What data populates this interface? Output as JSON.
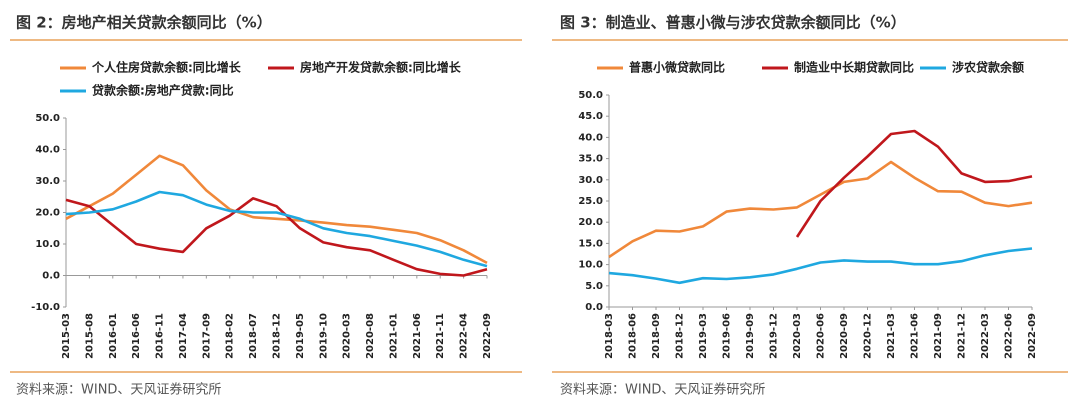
{
  "chart_data": [
    {
      "type": "line",
      "title": "图 2：房地产相关贷款余额同比（%）",
      "source": "资料来源：WIND、天风证券研究所",
      "categories": [
        "2015-03",
        "2015-08",
        "2016-01",
        "2016-06",
        "2016-11",
        "2017-04",
        "2017-09",
        "2018-02",
        "2018-07",
        "2018-12",
        "2019-05",
        "2019-10",
        "2020-03",
        "2020-08",
        "2021-01",
        "2021-06",
        "2021-11",
        "2022-04",
        "2022-09"
      ],
      "series": [
        {
          "name": "个人住房贷款余额:同比增长",
          "color": "#f0883a",
          "values": [
            18,
            22,
            26,
            32,
            38,
            35,
            27,
            21,
            18.5,
            18,
            17.5,
            16.8,
            16,
            15.5,
            14.5,
            13.5,
            11.2,
            8,
            4
          ]
        },
        {
          "name": "房地产开发贷款余额:同比增长",
          "color": "#c0171c",
          "values": [
            24,
            22,
            16,
            10,
            8.5,
            7.5,
            15,
            19,
            24.5,
            22,
            15,
            10.5,
            9,
            8,
            5,
            2,
            0.5,
            0,
            2
          ]
        },
        {
          "name": "贷款余额:房地产贷款:同比",
          "color": "#1fa8e0",
          "values": [
            19.5,
            20,
            21,
            23.5,
            26.5,
            25.5,
            22.5,
            20.5,
            20,
            20,
            18,
            15,
            13.5,
            12.5,
            11,
            9.5,
            7.5,
            5,
            3
          ]
        }
      ],
      "ylim": [
        -10,
        50
      ],
      "yticks": [
        {
          "value": -10,
          "label": "-10.0"
        },
        {
          "value": 0,
          "label": "0.0"
        },
        {
          "value": 10,
          "label": "10.0"
        },
        {
          "value": 20,
          "label": "20.0"
        },
        {
          "value": 30,
          "label": "30.0"
        },
        {
          "value": 40,
          "label": "40.0"
        },
        {
          "value": 50,
          "label": "50.0"
        }
      ],
      "grid": false
    },
    {
      "type": "line",
      "title": "图 3：制造业、普惠小微与涉农贷款余额同比（%）",
      "source": "资料来源：WIND、天风证券研究所",
      "categories": [
        "2018-03",
        "2018-06",
        "2018-09",
        "2018-12",
        "2019-03",
        "2019-06",
        "2019-09",
        "2019-12",
        "2020-03",
        "2020-06",
        "2020-09",
        "2020-12",
        "2021-03",
        "2021-06",
        "2021-09",
        "2021-12",
        "2022-03",
        "2022-06",
        "2022-09"
      ],
      "series": [
        {
          "name": "普惠小微贷款同比",
          "color": "#f0883a",
          "values": [
            11.8,
            15.5,
            18,
            17.8,
            19,
            22.5,
            23.2,
            23,
            23.5,
            26.5,
            29.5,
            30.3,
            34.2,
            30.5,
            27.3,
            27.2,
            24.6,
            23.8,
            24.6
          ]
        },
        {
          "name": "制造业中长期贷款同比",
          "color": "#c0171c",
          "values": [
            null,
            null,
            null,
            null,
            null,
            null,
            null,
            null,
            16.5,
            25,
            30.5,
            35.5,
            40.8,
            41.5,
            37.8,
            31.5,
            29.5,
            29.7,
            30.8
          ]
        },
        {
          "name": "涉农贷款余额",
          "color": "#1fa8e0",
          "values": [
            8,
            7.5,
            6.7,
            5.7,
            6.8,
            6.6,
            7,
            7.7,
            9,
            10.5,
            11,
            10.7,
            10.7,
            10.1,
            10.1,
            10.8,
            12.2,
            13.2,
            13.8
          ]
        }
      ],
      "ylim": [
        0,
        50
      ],
      "yticks": [
        {
          "value": 0,
          "label": "0.0"
        },
        {
          "value": 5,
          "label": "5.0"
        },
        {
          "value": 10,
          "label": "10.0"
        },
        {
          "value": 15,
          "label": "15.0"
        },
        {
          "value": 20,
          "label": "20.0"
        },
        {
          "value": 25,
          "label": "25.0"
        },
        {
          "value": 30,
          "label": "30.0"
        },
        {
          "value": 35,
          "label": "35.0"
        },
        {
          "value": 40,
          "label": "40.0"
        },
        {
          "value": 45,
          "label": "45.0"
        },
        {
          "value": 50,
          "label": "50.0"
        }
      ],
      "grid": false
    }
  ]
}
